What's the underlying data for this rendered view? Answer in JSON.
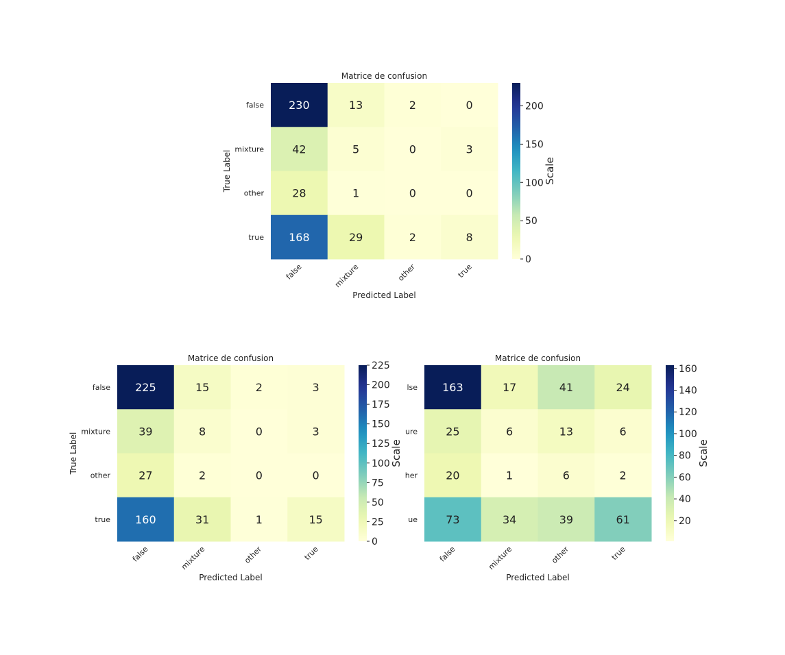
{
  "figure": {
    "colormap": "YlGnBu",
    "colormap_stops": [
      "#ffffd9",
      "#edf8b1",
      "#c7e9b4",
      "#7fcdbb",
      "#41b6c4",
      "#1d91c0",
      "#225ea8",
      "#253494",
      "#081d58"
    ]
  },
  "chart_data": [
    {
      "type": "heatmap",
      "title": "Matrice de confusion",
      "xlabel": "Predicted Label",
      "ylabel": "True Label",
      "x_categories": [
        "false",
        "mixture",
        "other",
        "true"
      ],
      "y_categories": [
        "false",
        "mixture",
        "other",
        "true"
      ],
      "values": [
        [
          230,
          13,
          2,
          0
        ],
        [
          42,
          5,
          0,
          3
        ],
        [
          28,
          1,
          0,
          0
        ],
        [
          168,
          29,
          2,
          8
        ]
      ],
      "colorbar": {
        "label": "Scale",
        "range": [
          0,
          230
        ],
        "ticks": [
          0,
          50,
          100,
          150,
          200
        ]
      }
    },
    {
      "type": "heatmap",
      "title": "Matrice de confusion",
      "xlabel": "Predicted Label",
      "ylabel": "True Label",
      "x_categories": [
        "false",
        "mixture",
        "other",
        "true"
      ],
      "y_categories": [
        "false",
        "mixture",
        "other",
        "true"
      ],
      "values": [
        [
          225,
          15,
          2,
          3
        ],
        [
          39,
          8,
          0,
          3
        ],
        [
          27,
          2,
          0,
          0
        ],
        [
          160,
          31,
          1,
          15
        ]
      ],
      "colorbar": {
        "label": "Scale",
        "range": [
          0,
          225
        ],
        "ticks": [
          0,
          25,
          50,
          75,
          100,
          125,
          150,
          175,
          200,
          225
        ]
      }
    },
    {
      "type": "heatmap",
      "title": "Matrice de confusion",
      "xlabel": "Predicted Label",
      "ylabel": "",
      "x_categories": [
        "false",
        "mixture",
        "other",
        "true"
      ],
      "y_categories": [
        "lse",
        "ure",
        "her",
        "ue"
      ],
      "values": [
        [
          163,
          17,
          41,
          24
        ],
        [
          25,
          6,
          13,
          6
        ],
        [
          20,
          1,
          6,
          2
        ],
        [
          73,
          34,
          39,
          61
        ]
      ],
      "colorbar": {
        "label": "Scale",
        "range": [
          1,
          163
        ],
        "ticks": [
          20,
          40,
          60,
          80,
          100,
          120,
          140,
          160
        ]
      }
    }
  ]
}
